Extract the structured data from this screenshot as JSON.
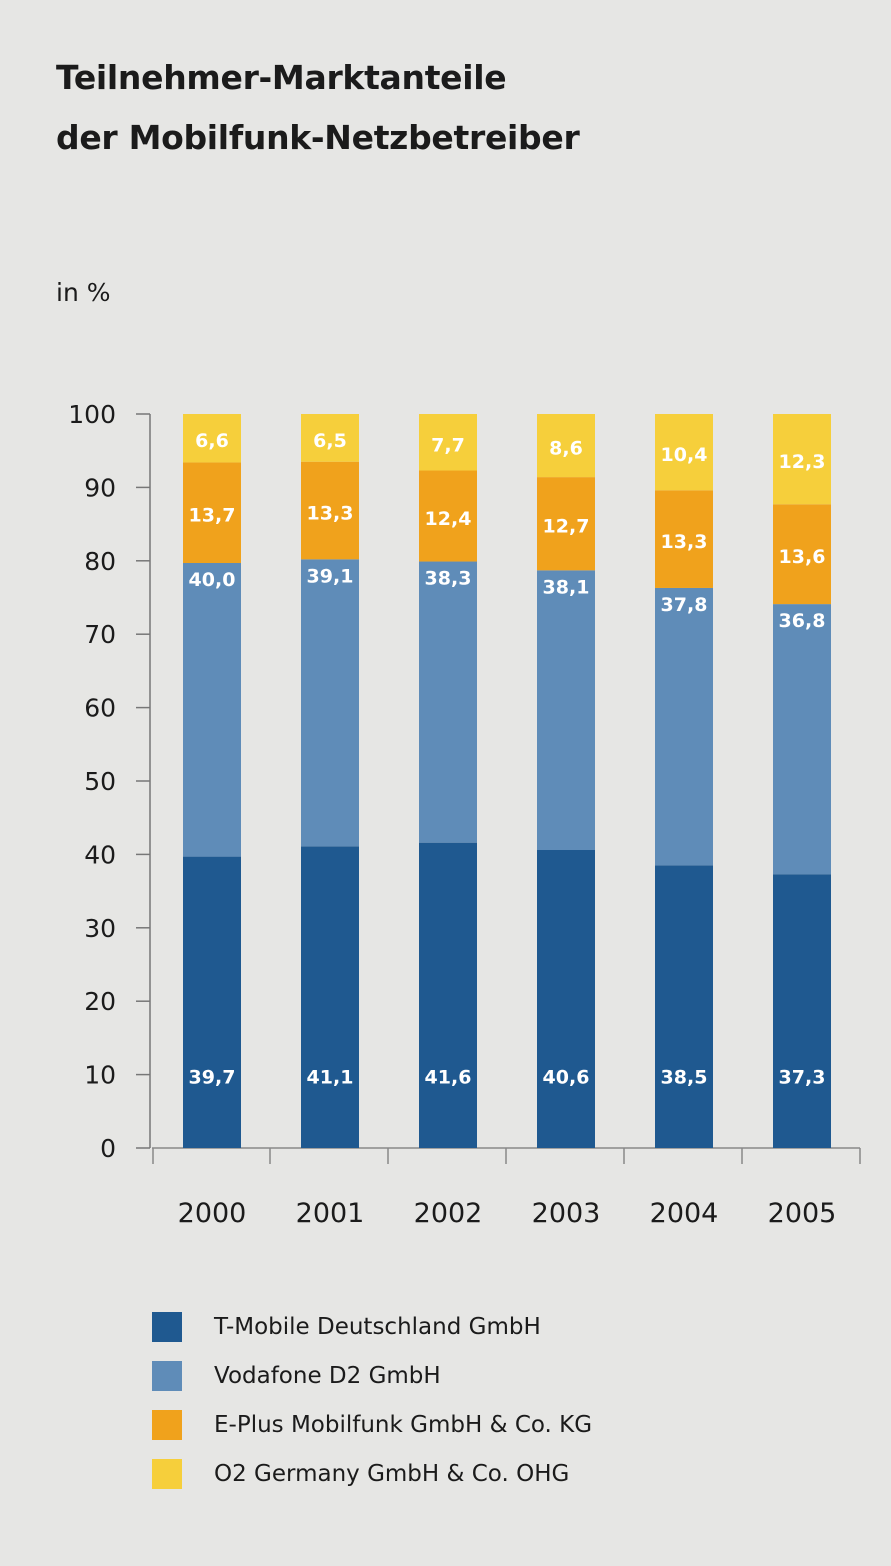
{
  "title_line1": "Teilnehmer-Marktanteile",
  "title_line2": "der Mobilfunk-Netzbetreiber",
  "chart_data": {
    "type": "bar",
    "stacked": true,
    "title": "Teilnehmer-Marktanteile der Mobilfunk-Netzbetreiber",
    "ylabel": "in %",
    "xlabel": "",
    "ylim": [
      0,
      100
    ],
    "yticks": [
      0,
      10,
      20,
      30,
      40,
      50,
      60,
      70,
      80,
      90,
      100
    ],
    "categories": [
      "2000",
      "2001",
      "2002",
      "2003",
      "2004",
      "2005"
    ],
    "series": [
      {
        "name": "T-Mobile Deutschland GmbH",
        "color": "#1f5990",
        "values": [
          39.7,
          41.1,
          41.6,
          40.6,
          38.5,
          37.3
        ],
        "labels": [
          "39,7",
          "41,1",
          "41,6",
          "40,6",
          "38,5",
          "37,3"
        ]
      },
      {
        "name": "Vodafone D2 GmbH",
        "color": "#5f8cb8",
        "values": [
          40.0,
          39.1,
          38.3,
          38.1,
          37.8,
          36.8
        ],
        "labels": [
          "40,0",
          "39,1",
          "38,3",
          "38,1",
          "37,8",
          "36,8"
        ]
      },
      {
        "name": "E-Plus Mobilfunk GmbH & Co. KG",
        "color": "#f0a21c",
        "values": [
          13.7,
          13.3,
          12.4,
          12.7,
          13.3,
          13.6
        ],
        "labels": [
          "13,7",
          "13,3",
          "12,4",
          "12,7",
          "13,3",
          "13,6"
        ]
      },
      {
        "name": "O2 Germany GmbH & Co. OHG",
        "color": "#f6cf3b",
        "values": [
          6.6,
          6.5,
          7.7,
          8.6,
          10.4,
          12.3
        ],
        "labels": [
          "6,6",
          "6,5",
          "7,7",
          "8,6",
          "10,4",
          "12,3"
        ]
      }
    ],
    "grid": false,
    "legend_position": "bottom"
  }
}
